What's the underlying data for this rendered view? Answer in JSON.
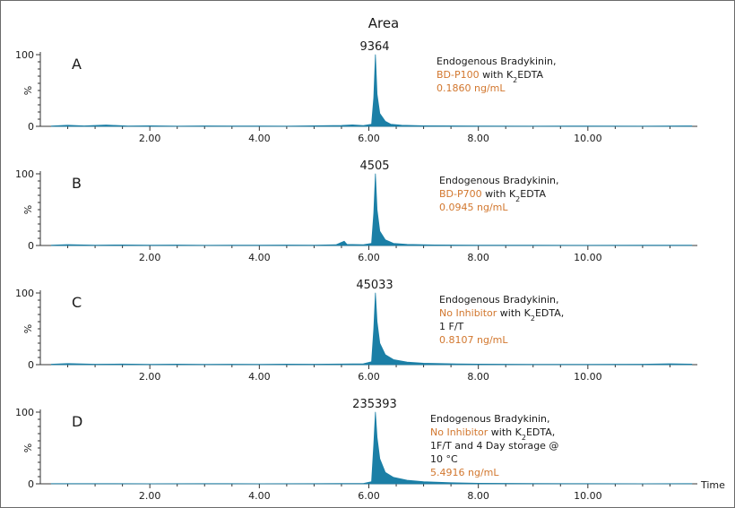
{
  "header": {
    "title": "Area"
  },
  "colors": {
    "trace": "#1b7fa6",
    "highlight": "#d2772e",
    "axis": "#333333",
    "text": "#1a1a1a"
  },
  "chart_data": {
    "type": "line",
    "xlabel": "Time",
    "ylabel": "%",
    "xlim": [
      0,
      12
    ],
    "ylim": [
      0,
      100
    ],
    "x_ticks": [
      "2.00",
      "4.00",
      "6.00",
      "8.00",
      "10.00"
    ],
    "y_ticks": [
      "0",
      "100"
    ],
    "panels": [
      {
        "label": "A",
        "peak_area": "9364",
        "annotation": [
          [
            {
              "text": "Endogenous Bradykinin,",
              "hl": false
            }
          ],
          [
            {
              "text": "BD-P100",
              "hl": true
            },
            {
              "text": " with K",
              "hl": false
            },
            {
              "text": "2",
              "hl": false,
              "sub": true
            },
            {
              "text": "EDTA",
              "hl": false
            }
          ],
          [
            {
              "text": "0.1860 ng/mL",
              "hl": true
            }
          ]
        ],
        "series": [
          {
            "values": [
              [
                0.2,
                0.5
              ],
              [
                0.5,
                1.5
              ],
              [
                0.8,
                0.6
              ],
              [
                1.2,
                1.8
              ],
              [
                1.6,
                0.4
              ],
              [
                2.0,
                0.8
              ],
              [
                2.5,
                0.3
              ],
              [
                3.0,
                0.6
              ],
              [
                3.5,
                0.4
              ],
              [
                4.0,
                0.5
              ],
              [
                4.5,
                0.3
              ],
              [
                5.0,
                0.7
              ],
              [
                5.5,
                1.2
              ],
              [
                5.7,
                2.0
              ],
              [
                5.9,
                1.0
              ],
              [
                6.05,
                3
              ],
              [
                6.09,
                40
              ],
              [
                6.12,
                100
              ],
              [
                6.15,
                45
              ],
              [
                6.2,
                18
              ],
              [
                6.3,
                7
              ],
              [
                6.4,
                3
              ],
              [
                6.6,
                1.5
              ],
              [
                7.0,
                0.8
              ],
              [
                8.0,
                0.5
              ],
              [
                9.0,
                0.3
              ],
              [
                10.0,
                0.4
              ],
              [
                11.0,
                0.3
              ],
              [
                11.9,
                0.6
              ]
            ]
          }
        ]
      },
      {
        "label": "B",
        "peak_area": "4505",
        "annotation": [
          [
            {
              "text": "Endogenous Bradykinin,",
              "hl": false
            }
          ],
          [
            {
              "text": "BD-P700",
              "hl": true
            },
            {
              "text": " with K",
              "hl": false
            },
            {
              "text": "2",
              "hl": false,
              "sub": true
            },
            {
              "text": "EDTA",
              "hl": false
            }
          ],
          [
            {
              "text": "0.0945 ng/mL",
              "hl": true
            }
          ]
        ],
        "series": [
          {
            "values": [
              [
                0.2,
                0.4
              ],
              [
                0.5,
                1.2
              ],
              [
                1.0,
                0.5
              ],
              [
                1.5,
                0.8
              ],
              [
                2.0,
                0.4
              ],
              [
                2.5,
                0.6
              ],
              [
                3.0,
                0.3
              ],
              [
                3.5,
                0.5
              ],
              [
                4.0,
                0.4
              ],
              [
                4.5,
                0.6
              ],
              [
                5.0,
                0.5
              ],
              [
                5.4,
                1.0
              ],
              [
                5.55,
                6.0
              ],
              [
                5.6,
                1.5
              ],
              [
                5.9,
                1.0
              ],
              [
                6.05,
                3
              ],
              [
                6.09,
                45
              ],
              [
                6.12,
                100
              ],
              [
                6.15,
                50
              ],
              [
                6.2,
                20
              ],
              [
                6.3,
                8
              ],
              [
                6.45,
                3
              ],
              [
                6.7,
                1.5
              ],
              [
                7.2,
                0.8
              ],
              [
                8.0,
                0.5
              ],
              [
                9.0,
                0.4
              ],
              [
                10.0,
                0.3
              ],
              [
                11.0,
                0.4
              ],
              [
                11.9,
                0.5
              ]
            ]
          }
        ]
      },
      {
        "label": "C",
        "peak_area": "45033",
        "annotation": [
          [
            {
              "text": "Endogenous Bradykinin,",
              "hl": false
            }
          ],
          [
            {
              "text": "No Inhibitor",
              "hl": true
            },
            {
              "text": " with K",
              "hl": false
            },
            {
              "text": "2",
              "hl": false,
              "sub": true
            },
            {
              "text": "EDTA,",
              "hl": false
            }
          ],
          [
            {
              "text": "1 F/T",
              "hl": false
            }
          ],
          [
            {
              "text": "0.8107 ng/mL",
              "hl": true
            }
          ]
        ],
        "series": [
          {
            "values": [
              [
                0.2,
                0.6
              ],
              [
                0.5,
                1.5
              ],
              [
                1.0,
                0.6
              ],
              [
                1.5,
                0.9
              ],
              [
                2.0,
                0.5
              ],
              [
                2.5,
                0.7
              ],
              [
                3.0,
                0.4
              ],
              [
                3.5,
                0.6
              ],
              [
                4.0,
                0.5
              ],
              [
                4.5,
                0.7
              ],
              [
                5.0,
                0.6
              ],
              [
                5.5,
                0.9
              ],
              [
                5.9,
                1.2
              ],
              [
                6.05,
                4
              ],
              [
                6.09,
                50
              ],
              [
                6.12,
                100
              ],
              [
                6.15,
                60
              ],
              [
                6.2,
                30
              ],
              [
                6.3,
                14
              ],
              [
                6.45,
                7
              ],
              [
                6.7,
                3.5
              ],
              [
                7.0,
                2
              ],
              [
                7.5,
                1.2
              ],
              [
                8.0,
                0.8
              ],
              [
                9.0,
                0.5
              ],
              [
                10.0,
                0.4
              ],
              [
                11.0,
                0.6
              ],
              [
                11.5,
                1.2
              ],
              [
                11.9,
                0.8
              ]
            ]
          }
        ]
      },
      {
        "label": "D",
        "peak_area": "235393",
        "annotation": [
          [
            {
              "text": "Endogenous Bradykinin,",
              "hl": false
            }
          ],
          [
            {
              "text": "No Inhibitor",
              "hl": true
            },
            {
              "text": " with K",
              "hl": false
            },
            {
              "text": "2",
              "hl": false,
              "sub": true
            },
            {
              "text": "EDTA,",
              "hl": false
            }
          ],
          [
            {
              "text": "1F/T and 4 Day storage @",
              "hl": false
            }
          ],
          [
            {
              "text": "10 °C",
              "hl": false
            }
          ],
          [
            {
              "text": "5.4916 ng/mL",
              "hl": true
            }
          ]
        ],
        "series": [
          {
            "values": [
              [
                0.2,
                0.3
              ],
              [
                1.0,
                0.3
              ],
              [
                2.0,
                0.2
              ],
              [
                3.0,
                0.3
              ],
              [
                4.0,
                0.2
              ],
              [
                5.0,
                0.3
              ],
              [
                5.9,
                0.5
              ],
              [
                6.05,
                3
              ],
              [
                6.09,
                55
              ],
              [
                6.12,
                100
              ],
              [
                6.15,
                65
              ],
              [
                6.2,
                35
              ],
              [
                6.3,
                16
              ],
              [
                6.45,
                9
              ],
              [
                6.7,
                5
              ],
              [
                7.0,
                3
              ],
              [
                7.5,
                1.5
              ],
              [
                8.0,
                0.8
              ],
              [
                9.0,
                0.4
              ],
              [
                10.0,
                0.3
              ],
              [
                11.0,
                0.2
              ],
              [
                11.9,
                0.3
              ]
            ]
          }
        ]
      }
    ]
  }
}
